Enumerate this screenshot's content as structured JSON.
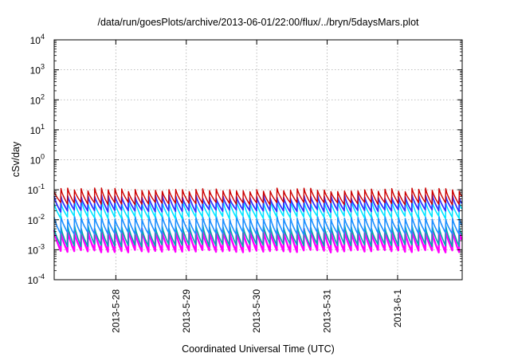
{
  "chart_data": {
    "type": "line",
    "title": "/data/run/goesPlots/archive/2013-06-01/22:00/flux/../bryn/5daysMars.plot",
    "xlabel": "Coordinated Universal Time (UTC)",
    "ylabel": "cSv/day",
    "yscale": "log",
    "ylim": [
      0.0001,
      10000
    ],
    "y_ticks": [
      {
        "value": 0.0001,
        "base": "10",
        "exp": "-4"
      },
      {
        "value": 0.001,
        "base": "10",
        "exp": "-3"
      },
      {
        "value": 0.01,
        "base": "10",
        "exp": "-2"
      },
      {
        "value": 0.1,
        "base": "10",
        "exp": "-1"
      },
      {
        "value": 1,
        "base": "10",
        "exp": "0"
      },
      {
        "value": 10,
        "base": "10",
        "exp": "1"
      },
      {
        "value": 100,
        "base": "10",
        "exp": "2"
      },
      {
        "value": 1000,
        "base": "10",
        "exp": "3"
      },
      {
        "value": 10000,
        "base": "10",
        "exp": "4"
      }
    ],
    "xlim": [
      "2013-05-27T03:00",
      "2013-06-01T22:00"
    ],
    "x_ticks": [
      {
        "value": "2013-05-28T00:00",
        "label": "2013-5-28"
      },
      {
        "value": "2013-05-29T00:00",
        "label": "2013-5-29"
      },
      {
        "value": "2013-05-30T00:00",
        "label": "2013-5-30"
      },
      {
        "value": "2013-05-31T00:00",
        "label": "2013-5-31"
      },
      {
        "value": "2013-06-01T00:00",
        "label": "2013-6-1"
      }
    ],
    "grid": true,
    "pulse_period_hours": 2.3,
    "series": [
      {
        "color": "#ff00ff",
        "peak": 0.0045,
        "trough": 0.0009,
        "width": 2.4
      },
      {
        "color": "#00aaaa",
        "peak": 0.006,
        "trough": 0.0014,
        "width": 1.6
      },
      {
        "color": "#1e90ff",
        "peak": 0.012,
        "trough": 0.0035,
        "width": 1.6
      },
      {
        "color": "#00e5ff",
        "peak": 0.04,
        "trough": 0.012,
        "width": 1.6
      },
      {
        "color": "#3333ff",
        "peak": 0.06,
        "trough": 0.02,
        "width": 1.8
      },
      {
        "color": "#cc0000",
        "peak": 0.1,
        "trough": 0.035,
        "width": 1.4
      }
    ]
  }
}
